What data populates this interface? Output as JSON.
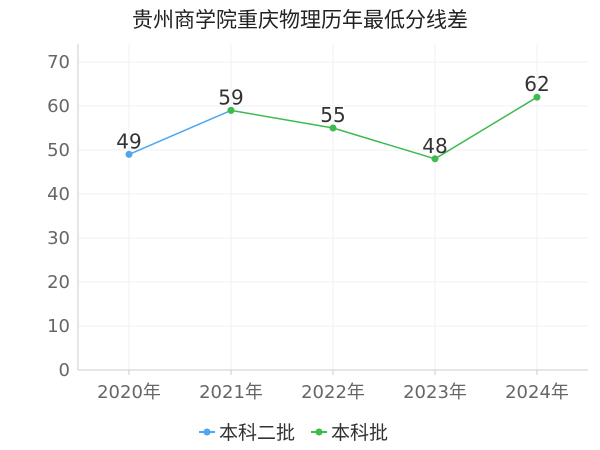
{
  "chart_data": {
    "type": "line",
    "title": "贵州商学院重庆物理历年最低分线差",
    "xlabel": "",
    "ylabel": "",
    "categories": [
      "2020年",
      "2021年",
      "2022年",
      "2023年",
      "2024年"
    ],
    "ylim": [
      0,
      70
    ],
    "yticks": [
      0,
      10,
      20,
      30,
      40,
      50,
      60,
      70
    ],
    "grid": true,
    "legend_position": "bottom-center",
    "series": [
      {
        "name": "本科二批",
        "color": "#4ea6f0",
        "values": [
          49,
          59,
          null,
          null,
          null
        ]
      },
      {
        "name": "本科批",
        "color": "#3dbb4f",
        "values": [
          null,
          59,
          55,
          48,
          62
        ]
      }
    ],
    "data_labels": [
      {
        "category_index": 0,
        "value": 49,
        "text": "49"
      },
      {
        "category_index": 1,
        "value": 59,
        "text": "59"
      },
      {
        "category_index": 2,
        "value": 55,
        "text": "55"
      },
      {
        "category_index": 3,
        "value": 48,
        "text": "48"
      },
      {
        "category_index": 4,
        "value": 62,
        "text": "62"
      }
    ]
  }
}
